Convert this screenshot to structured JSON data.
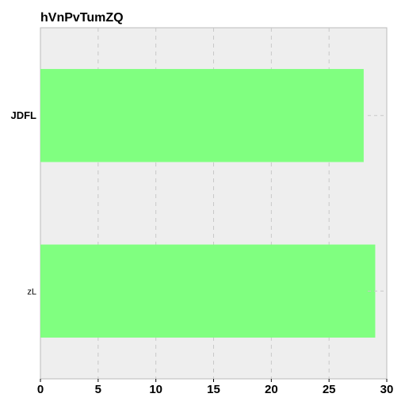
{
  "chart_data": {
    "type": "bar",
    "orientation": "horizontal",
    "title": "hVnPvTumZQ",
    "xlabel": "",
    "ylabel": "",
    "categories": [
      "JDFL",
      "zL"
    ],
    "values": [
      28,
      29
    ],
    "xlim": [
      0,
      30
    ],
    "x_ticks": [
      "0",
      "5",
      "10",
      "15",
      "20",
      "25",
      "30"
    ],
    "grid": true,
    "legend": "none",
    "colors": {
      "bar": "#80ff80",
      "plot_background": "#eeeeee",
      "grid": "#c8c8c8",
      "frame": "#bbbbbb"
    }
  }
}
